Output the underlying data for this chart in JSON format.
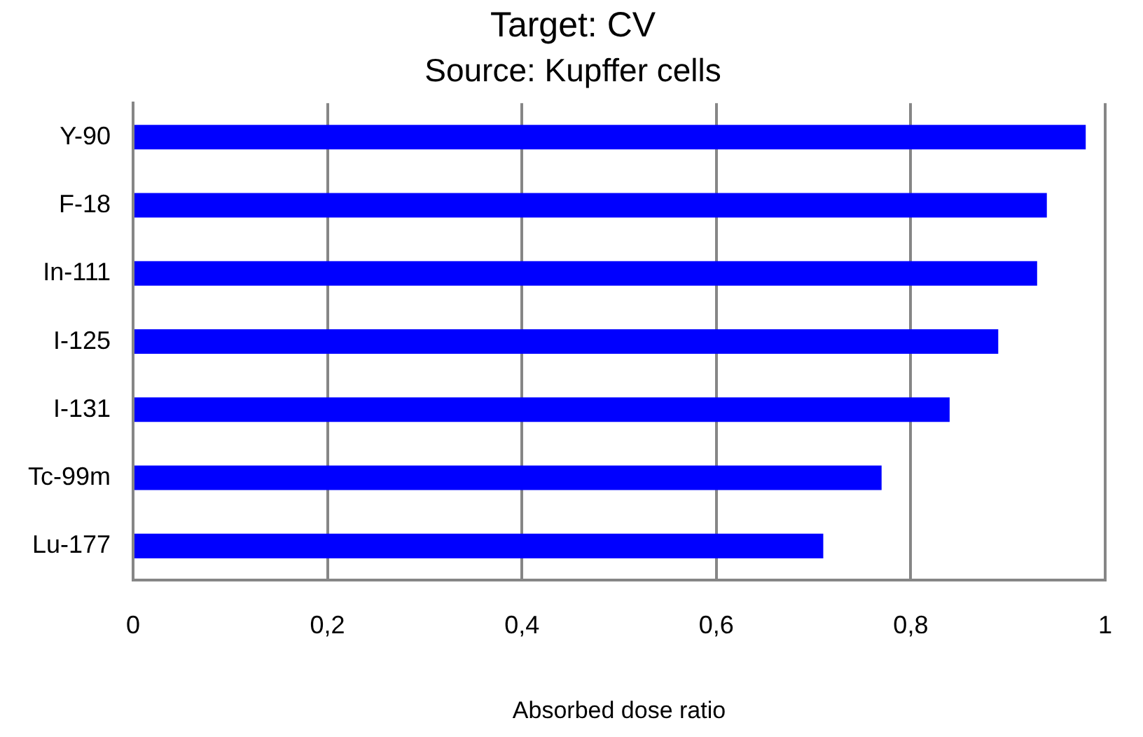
{
  "chart_data": {
    "type": "bar",
    "orientation": "horizontal",
    "title": "Target: CV",
    "subtitle": "Source: Kupffer cells",
    "xlabel": "Absorbed dose ratio",
    "categories": [
      "Y-90",
      "F-18",
      "In-111",
      "I-125",
      "I-131",
      "Tc-99m",
      "Lu-177"
    ],
    "values": [
      0.98,
      0.94,
      0.93,
      0.89,
      0.84,
      0.77,
      0.71
    ],
    "color": "#0000ff",
    "xlim": [
      0,
      1
    ],
    "xticks": [
      {
        "value": 0,
        "label": "0"
      },
      {
        "value": 0.2,
        "label": "0,2"
      },
      {
        "value": 0.4,
        "label": "0,4"
      },
      {
        "value": 0.6,
        "label": "0,6"
      },
      {
        "value": 0.8,
        "label": "0,8"
      },
      {
        "value": 1,
        "label": "1"
      }
    ],
    "grid": "x",
    "legend": false
  }
}
